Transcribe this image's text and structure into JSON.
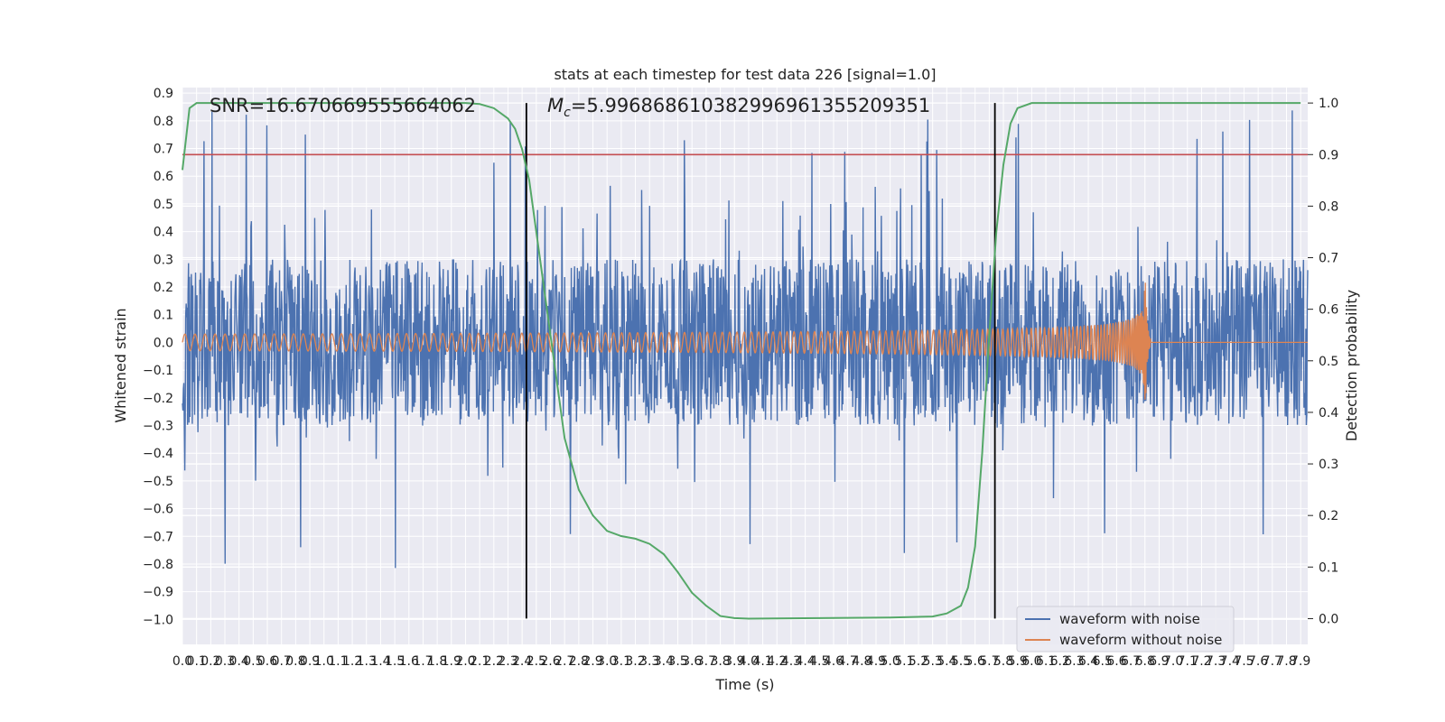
{
  "chart_data": {
    "type": "line",
    "title": "stats at each timestep for test data 226 [signal=1.0]",
    "xlabel": "Time (s)",
    "ylabel": "Whitened strain",
    "y2label": "Detection probability",
    "xlim": [
      0.0,
      7.95
    ],
    "ylim": [
      -1.09,
      0.92
    ],
    "y2lim": [
      -0.05,
      1.03
    ],
    "x_ticks": [
      0.0,
      0.1,
      0.2,
      0.3,
      0.4,
      0.5,
      0.6,
      0.7,
      0.8,
      0.9,
      1.0,
      1.1,
      1.2,
      1.3,
      1.4,
      1.5,
      1.6,
      1.7,
      1.8,
      1.9,
      2.0,
      2.1,
      2.2,
      2.3,
      2.4,
      2.5,
      2.6,
      2.7,
      2.8,
      2.9,
      3.0,
      3.1,
      3.2,
      3.3,
      3.4,
      3.5,
      3.6,
      3.7,
      3.8,
      3.9,
      4.0,
      4.1,
      4.2,
      4.3,
      4.4,
      4.5,
      4.6,
      4.7,
      4.8,
      4.9,
      5.0,
      5.1,
      5.2,
      5.3,
      5.4,
      5.5,
      5.6,
      5.7,
      5.8,
      5.9,
      6.0,
      6.1,
      6.2,
      6.3,
      6.4,
      6.5,
      6.6,
      6.7,
      6.8,
      6.9,
      7.0,
      7.1,
      7.2,
      7.3,
      7.4,
      7.5,
      7.6,
      7.7,
      7.8,
      7.9
    ],
    "y_ticks": [
      0.9,
      0.8,
      0.7,
      0.6,
      0.5,
      0.4,
      0.3,
      0.2,
      0.1,
      0.0,
      -0.1,
      -0.2,
      -0.3,
      -0.4,
      -0.5,
      -0.6,
      -0.7,
      -0.8,
      -0.9,
      -1.0
    ],
    "y2_ticks": [
      1.0,
      0.9,
      0.8,
      0.7,
      0.6,
      0.5,
      0.4,
      0.3,
      0.2,
      0.1,
      0.0
    ],
    "grid": true,
    "legend_position": "lower-right",
    "series": [
      {
        "name": "waveform with noise",
        "color": "#4c72b0",
        "axis": "left",
        "amplitude_typical": 0.3,
        "amplitude_peak": 0.84
      },
      {
        "name": "waveform without noise",
        "color": "#dd8452",
        "axis": "left",
        "start_amplitude": 0.03,
        "peak_time": 6.8,
        "peak_amplitude": 0.32
      },
      {
        "name": "",
        "color": "#55a868",
        "axis": "right",
        "x": [
          0.0,
          0.05,
          0.1,
          0.3,
          1.0,
          1.5,
          2.0,
          2.1,
          2.2,
          2.3,
          2.35,
          2.4,
          2.45,
          2.5,
          2.6,
          2.7,
          2.8,
          2.9,
          3.0,
          3.1,
          3.2,
          3.3,
          3.4,
          3.5,
          3.6,
          3.7,
          3.8,
          3.9,
          4.0,
          4.5,
          5.0,
          5.3,
          5.4,
          5.5,
          5.55,
          5.6,
          5.65,
          5.7,
          5.75,
          5.8,
          5.85,
          5.9,
          6.0,
          6.5,
          7.0,
          7.9
        ],
        "y": [
          0.87,
          0.99,
          1.0,
          1.0,
          1.0,
          1.0,
          1.0,
          0.998,
          0.99,
          0.97,
          0.95,
          0.91,
          0.85,
          0.75,
          0.55,
          0.35,
          0.25,
          0.2,
          0.17,
          0.16,
          0.155,
          0.145,
          0.125,
          0.09,
          0.05,
          0.025,
          0.005,
          0.001,
          0.0,
          0.001,
          0.002,
          0.004,
          0.01,
          0.025,
          0.06,
          0.14,
          0.32,
          0.55,
          0.75,
          0.88,
          0.96,
          0.99,
          1.0,
          1.0,
          1.0,
          1.0
        ]
      }
    ],
    "hlines": [
      {
        "axis": "right",
        "value": 0.9,
        "color": "#c44e52"
      }
    ],
    "vlines": [
      {
        "x": 2.43,
        "color": "#000000"
      },
      {
        "x": 5.74,
        "color": "#000000"
      }
    ],
    "annotations": [
      "SNR=16.670669555664062",
      "=5.996868610382996961355209351"
    ],
    "annotation_symbol": "M",
    "annotation_subscript": "c"
  }
}
